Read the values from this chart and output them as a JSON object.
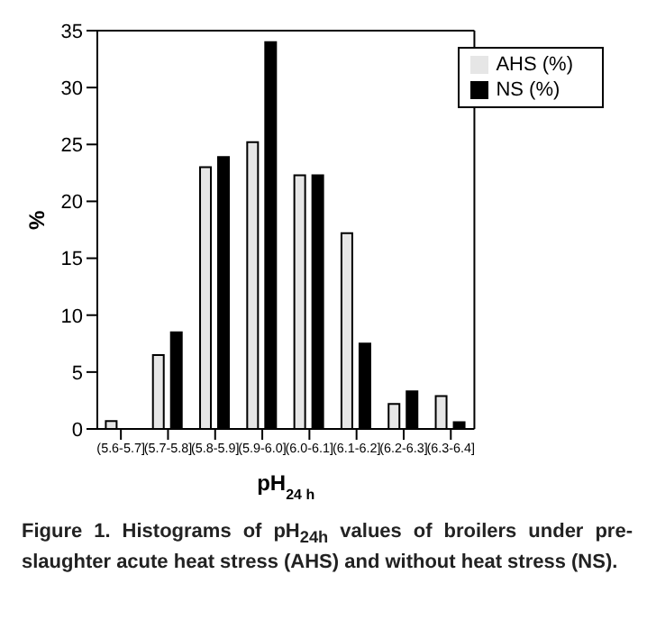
{
  "chart_data": {
    "type": "bar",
    "categories": [
      "(5.6-5.7]",
      "(5.7-5.8]",
      "(5.8-5.9]",
      "(5.9-6.0]",
      "(6.0-6.1]",
      "(6.1-6.2]",
      "(6.2-6.3]",
      "(6.3-6.4]"
    ],
    "series": [
      {
        "name": "AHS (%)",
        "color": "#e6e6e6",
        "values": [
          0.7,
          6.5,
          23,
          25.2,
          22.3,
          17.2,
          2.2,
          2.9
        ]
      },
      {
        "name": "NS (%)",
        "color": "#000000",
        "values": [
          0,
          8.5,
          23.9,
          34,
          22.3,
          7.5,
          3.3,
          0.6
        ]
      }
    ],
    "ylim": [
      0,
      35
    ],
    "yticks": [
      0,
      5,
      10,
      15,
      20,
      25,
      30,
      35
    ],
    "ylabel": "%",
    "xlabel": "pH$_{24 h}$",
    "legend": "top right",
    "grid": false,
    "annotations": [
      "Figure 1. Histograms of pH$_{24h}$ values of broilers under pre-slaughter acute heat stress (AHS) and without heat stress (NS)."
    ]
  }
}
